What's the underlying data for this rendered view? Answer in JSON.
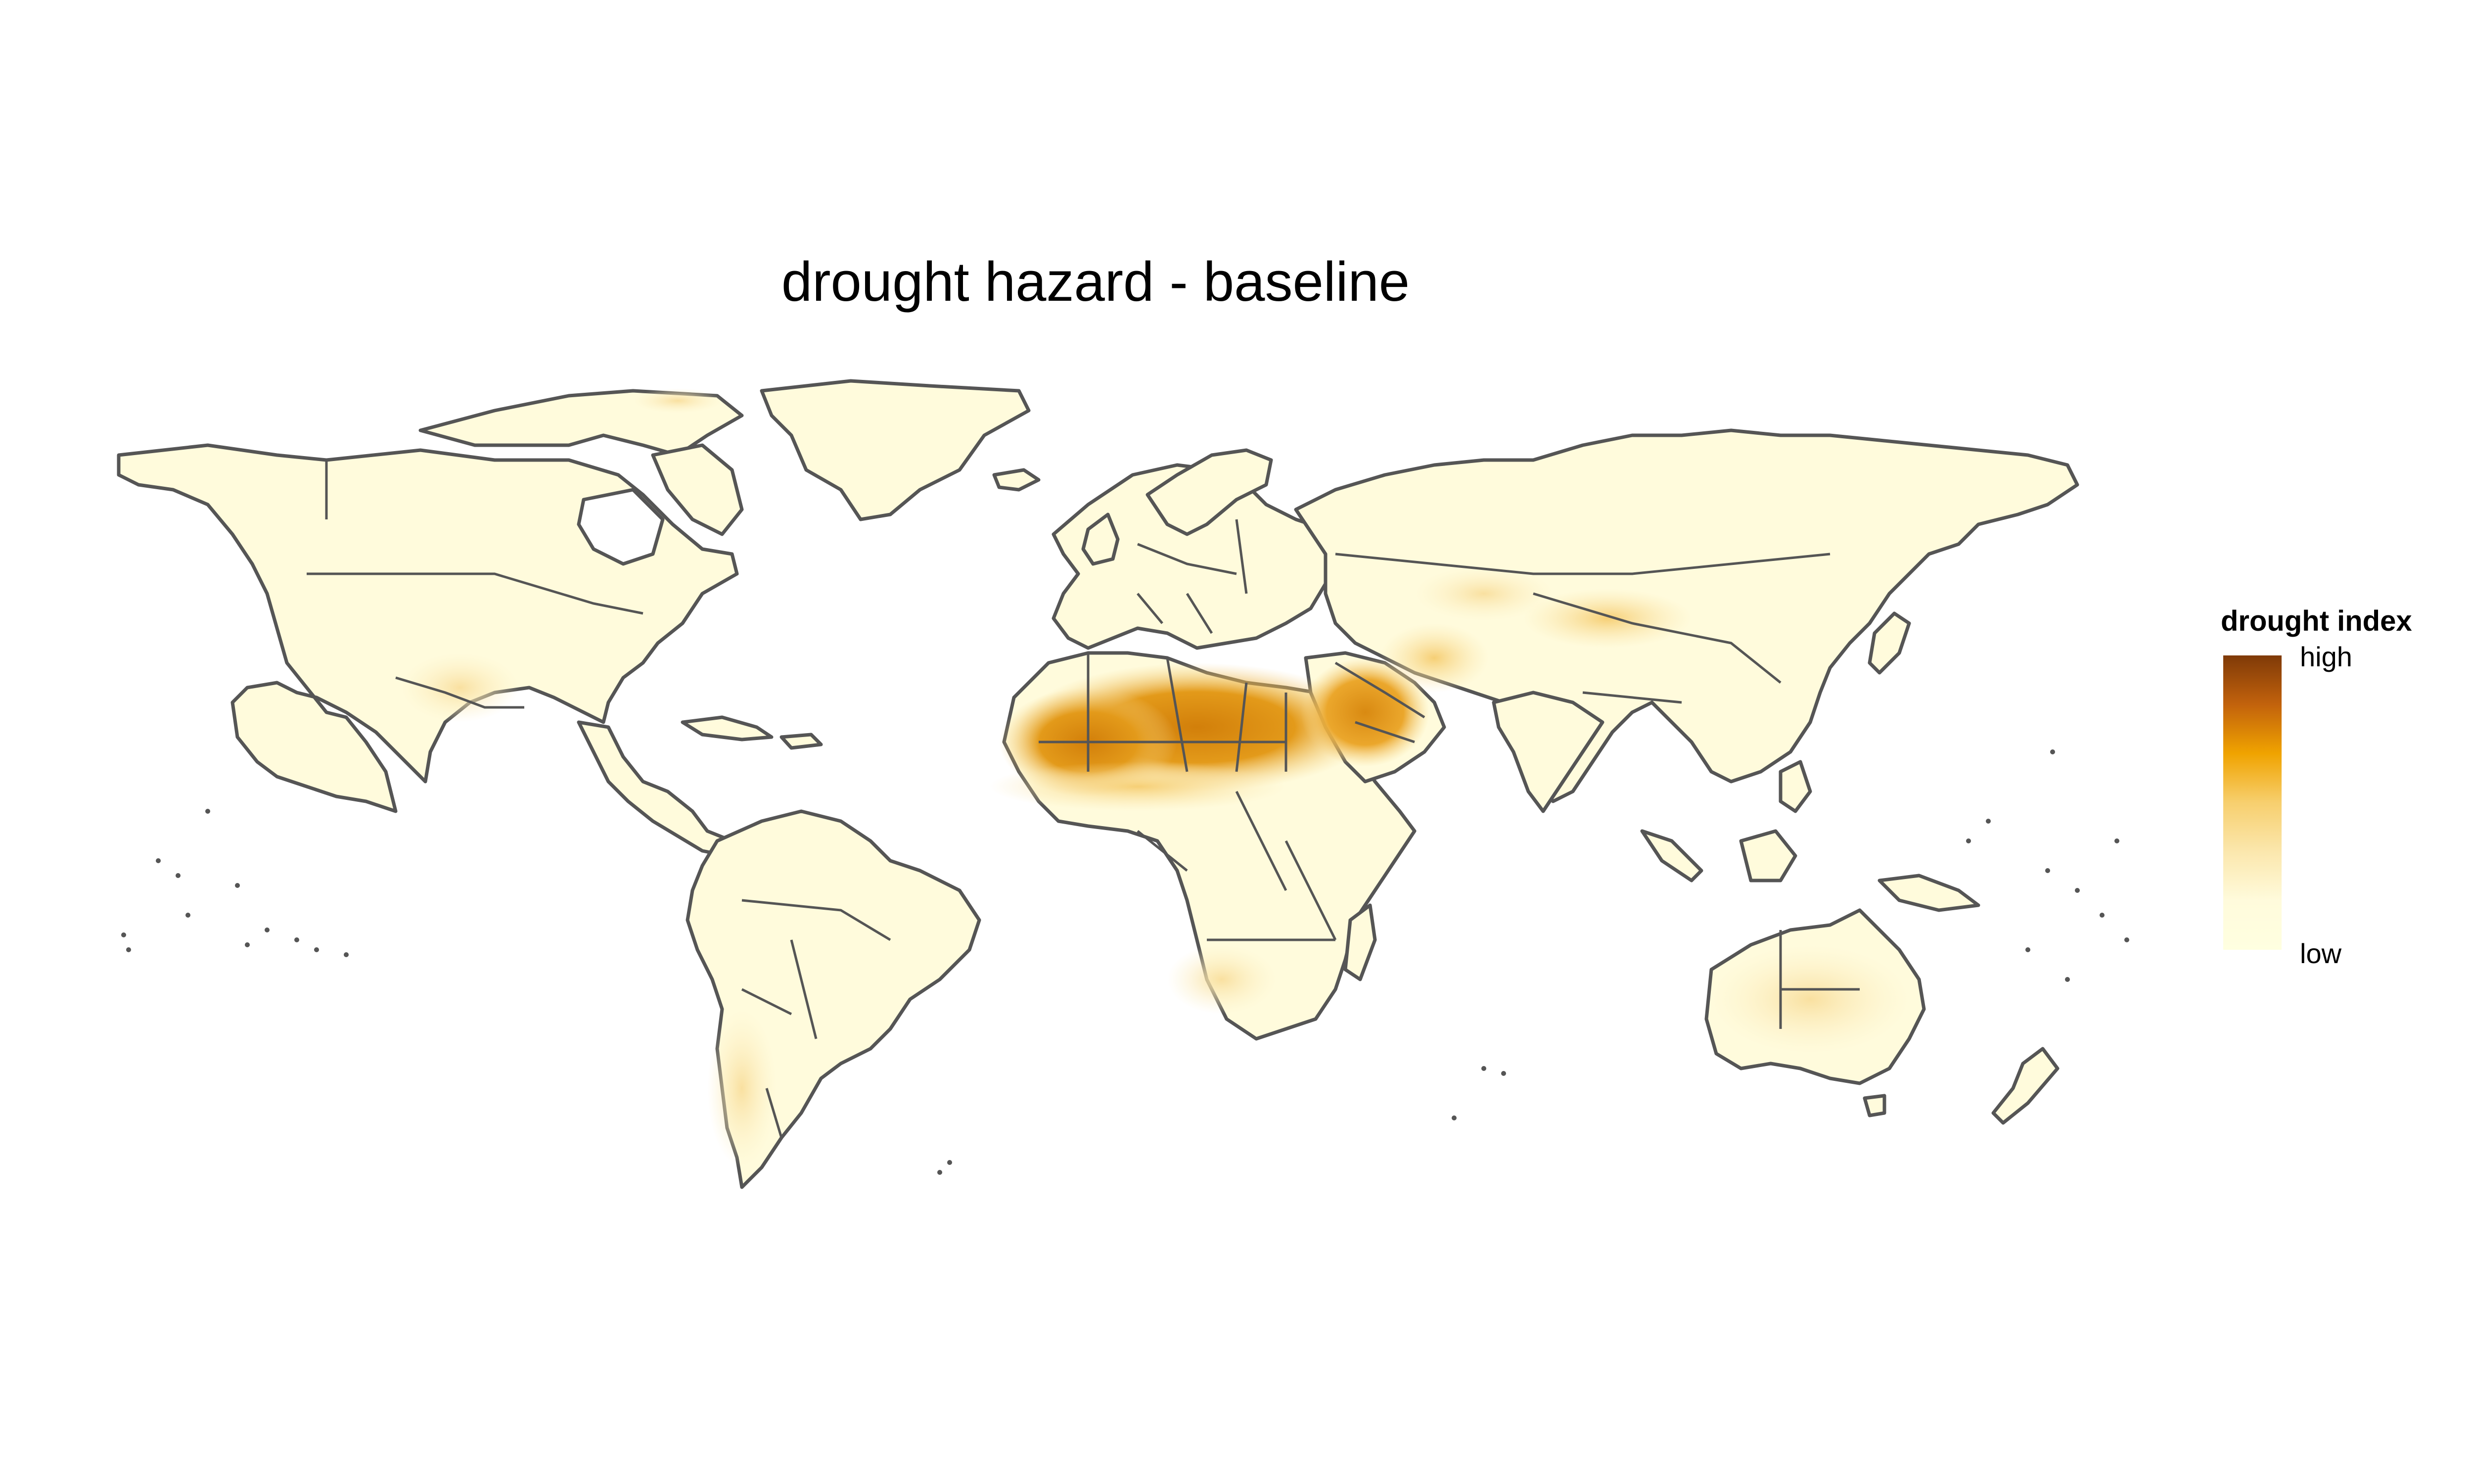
{
  "title": "drought hazard - baseline",
  "legend": {
    "title": "drought index",
    "high_label": "high",
    "low_label": "low",
    "gradient": [
      "#7f3a08",
      "#c2620c",
      "#f0a300",
      "#f7cf6e",
      "#fbe7ad",
      "#fffbdc",
      "#ffffe0"
    ]
  },
  "colors": {
    "land_base": "#fffbdc",
    "border": "#555555",
    "ocean": "#ffffff",
    "sahara_core": "#d27f0a",
    "arabia_core": "#d98a12"
  }
}
